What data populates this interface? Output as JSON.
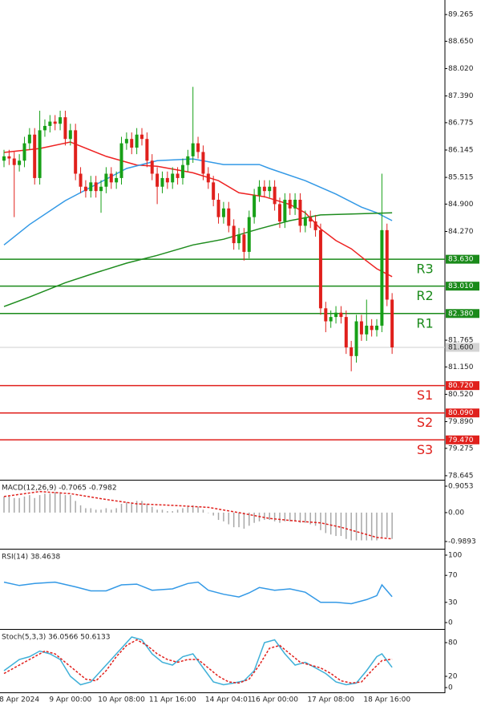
{
  "chart_data": [
    {
      "type": "candlestick",
      "categories": [
        null,
        null,
        null,
        "8 Apr 2024",
        null,
        null,
        null,
        null,
        null,
        null,
        null,
        null,
        null,
        "9 Apr 00:00",
        null,
        null,
        null,
        null,
        null,
        null,
        null,
        null,
        null,
        "10 Apr 08:00",
        null,
        null,
        null,
        null,
        null,
        null,
        null,
        null,
        null,
        "11 Apr 16:00",
        null,
        null,
        null,
        null,
        null,
        null,
        null,
        null,
        null,
        null,
        "14 Apr 04:01",
        null,
        null,
        null,
        null,
        null,
        null,
        null,
        null,
        "16 Apr 00:00",
        null,
        null,
        null,
        null,
        null,
        null,
        null,
        null,
        null,
        null,
        "17 Apr 08:00",
        null,
        null,
        null,
        null,
        null,
        null,
        null,
        null,
        null,
        null,
        "18 Apr 16:00",
        null
      ],
      "open": [
        85.9,
        86.0,
        85.95,
        85.8,
        85.9,
        86.3,
        86.5,
        85.5,
        86.6,
        86.7,
        86.8,
        86.75,
        86.9,
        86.4,
        86.6,
        85.6,
        85.3,
        85.2,
        85.4,
        85.2,
        85.3,
        85.6,
        85.4,
        85.5,
        86.3,
        86.4,
        86.2,
        86.5,
        86.4,
        85.9,
        85.6,
        85.3,
        85.5,
        85.4,
        85.6,
        85.5,
        85.8,
        86.0,
        86.3,
        86.1,
        85.6,
        85.4,
        85.0,
        84.6,
        84.8,
        84.4,
        84.0,
        84.2,
        83.8,
        84.6,
        85.1,
        85.3,
        85.2,
        85.3,
        84.9,
        84.5,
        85.0,
        84.8,
        85.0,
        84.4,
        84.6,
        84.5,
        84.3,
        82.5,
        82.2,
        82.3,
        82.4,
        82.3,
        81.6,
        81.4,
        82.2,
        81.9,
        82.1,
        82.0,
        82.1,
        84.3,
        82.7
      ],
      "high": [
        86.15,
        86.15,
        86.1,
        86.05,
        86.45,
        86.65,
        86.65,
        87.05,
        86.85,
        86.95,
        86.95,
        87.05,
        87.05,
        86.75,
        86.75,
        85.75,
        85.45,
        85.55,
        85.55,
        85.45,
        85.75,
        85.75,
        85.65,
        86.45,
        86.55,
        86.55,
        86.65,
        86.65,
        86.55,
        86.05,
        85.75,
        85.65,
        85.65,
        85.75,
        85.75,
        85.95,
        86.15,
        87.6,
        86.45,
        86.25,
        85.75,
        85.55,
        85.15,
        84.95,
        84.95,
        84.55,
        84.35,
        84.35,
        84.75,
        85.25,
        85.45,
        85.45,
        85.45,
        85.45,
        85.05,
        85.15,
        85.15,
        85.15,
        85.15,
        84.75,
        84.75,
        84.65,
        84.45,
        82.65,
        82.45,
        82.55,
        82.55,
        82.45,
        81.75,
        82.35,
        82.35,
        82.7,
        82.25,
        82.25,
        85.6,
        84.45,
        82.85
      ],
      "low": [
        85.75,
        85.8,
        84.6,
        85.65,
        85.75,
        86.15,
        85.35,
        85.35,
        86.45,
        86.55,
        86.6,
        86.6,
        86.25,
        86.25,
        85.45,
        85.15,
        85.05,
        85.05,
        85.05,
        84.7,
        85.15,
        85.25,
        85.25,
        85.35,
        86.15,
        86.05,
        86.05,
        86.25,
        85.75,
        85.45,
        84.9,
        85.15,
        85.25,
        85.25,
        85.35,
        85.35,
        85.65,
        85.85,
        85.95,
        85.45,
        85.25,
        84.85,
        84.45,
        84.45,
        84.25,
        83.85,
        83.85,
        83.6,
        83.65,
        84.45,
        84.95,
        85.05,
        85.05,
        84.75,
        84.35,
        84.35,
        84.65,
        84.65,
        84.25,
        84.25,
        84.35,
        84.15,
        82.35,
        81.95,
        82.05,
        82.15,
        82.15,
        81.45,
        81.05,
        81.25,
        81.75,
        81.75,
        81.85,
        81.85,
        81.95,
        82.55,
        81.45
      ],
      "close": [
        86.0,
        85.95,
        85.8,
        85.9,
        86.3,
        86.5,
        85.5,
        86.6,
        86.7,
        86.8,
        86.75,
        86.9,
        86.4,
        86.6,
        85.6,
        85.3,
        85.2,
        85.4,
        85.2,
        85.3,
        85.6,
        85.4,
        85.5,
        86.3,
        86.4,
        86.2,
        86.5,
        86.4,
        85.9,
        85.6,
        85.3,
        85.5,
        85.4,
        85.6,
        85.5,
        85.8,
        86.0,
        86.3,
        86.1,
        85.6,
        85.4,
        85.0,
        84.6,
        84.8,
        84.4,
        84.0,
        84.2,
        83.8,
        84.6,
        85.1,
        85.3,
        85.2,
        85.3,
        84.9,
        84.5,
        85.0,
        84.8,
        85.0,
        84.4,
        84.6,
        84.5,
        84.3,
        82.5,
        82.2,
        82.3,
        82.4,
        82.3,
        81.6,
        81.4,
        82.2,
        81.9,
        82.1,
        82.0,
        82.1,
        84.3,
        82.7,
        81.6
      ],
      "up_color": "#17a017",
      "down_color": "#e0201c",
      "lines": [
        {
          "color": "#ee2222",
          "x": [
            0,
            7,
            13,
            20,
            26,
            30,
            37,
            42,
            46,
            51,
            56,
            59,
            62,
            65,
            68,
            71,
            73,
            76
          ],
          "values": [
            86.09,
            86.18,
            86.33,
            86.0,
            85.8,
            85.77,
            85.62,
            85.44,
            85.16,
            85.07,
            84.89,
            84.7,
            84.33,
            84.06,
            83.87,
            83.59,
            83.41,
            83.23
          ]
        },
        {
          "color": "#3399e6",
          "x": [
            0,
            5,
            12,
            18,
            24,
            30,
            37,
            43,
            50,
            52,
            59,
            65,
            70,
            73,
            76
          ],
          "values": [
            83.96,
            84.43,
            84.98,
            85.35,
            85.72,
            85.9,
            85.94,
            85.81,
            85.81,
            85.72,
            85.44,
            85.13,
            84.83,
            84.7,
            84.52
          ]
        },
        {
          "color": "#1e8c1e",
          "x": [
            0,
            5,
            12,
            18,
            24,
            30,
            37,
            43,
            50,
            56,
            62,
            68,
            76
          ],
          "values": [
            82.54,
            82.76,
            83.09,
            83.32,
            83.54,
            83.72,
            83.96,
            84.09,
            84.33,
            84.52,
            84.65,
            84.67,
            84.7
          ]
        }
      ],
      "levels": [
        {
          "name": "R3",
          "value": 83.63,
          "label": "83.630",
          "color": "#1a8a1a"
        },
        {
          "name": "R2",
          "value": 83.01,
          "label": "83.010",
          "color": "#1a8a1a"
        },
        {
          "name": "R1",
          "value": 82.38,
          "label": "82.380",
          "color": "#1a8a1a"
        },
        {
          "name": "S1",
          "value": 80.72,
          "label": "80.720",
          "color": "#e0201c"
        },
        {
          "name": "S2",
          "value": 80.09,
          "label": "80.090",
          "color": "#e0201c"
        },
        {
          "name": "S3",
          "value": 79.47,
          "label": "79.470",
          "color": "#e0201c"
        }
      ],
      "last_price": {
        "value": 81.6,
        "label": "81.600"
      },
      "ylim": [
        78.57,
        89.6
      ],
      "yticks": [
        {
          "value": 89.265,
          "label": "89.265"
        },
        {
          "value": 88.65,
          "label": "88.650"
        },
        {
          "value": 88.02,
          "label": "88.020"
        },
        {
          "value": 87.39,
          "label": "87.390"
        },
        {
          "value": 86.775,
          "label": "86.775"
        },
        {
          "value": 86.145,
          "label": "86.145"
        },
        {
          "value": 85.515,
          "label": "85.515"
        },
        {
          "value": 84.9,
          "label": "84.900"
        },
        {
          "value": 84.27,
          "label": "84.270"
        },
        {
          "value": 81.765,
          "label": "81.765"
        },
        {
          "value": 81.15,
          "label": "81.150"
        },
        {
          "value": 80.52,
          "label": "80.520"
        },
        {
          "value": 79.89,
          "label": "79.890"
        },
        {
          "value": 79.275,
          "label": "79.275"
        },
        {
          "value": 78.645,
          "label": "78.645"
        }
      ]
    },
    {
      "type": "bar",
      "title": "MACD(12,26,9) -0.7065 -0.7982",
      "color": "#a8a8a8",
      "values": [
        0.55,
        0.55,
        0.5,
        0.5,
        0.55,
        0.6,
        0.5,
        0.6,
        0.65,
        0.65,
        0.7,
        0.7,
        0.6,
        0.6,
        0.4,
        0.25,
        0.15,
        0.15,
        0.1,
        0.1,
        0.15,
        0.1,
        0.15,
        0.3,
        0.35,
        0.35,
        0.4,
        0.4,
        0.3,
        0.2,
        0.1,
        0.1,
        0.05,
        0.05,
        0.1,
        0.15,
        0.2,
        0.25,
        0.2,
        0.1,
        0.0,
        -0.1,
        -0.25,
        -0.3,
        -0.4,
        -0.5,
        -0.5,
        -0.55,
        -0.45,
        -0.35,
        -0.3,
        -0.25,
        -0.25,
        -0.3,
        -0.35,
        -0.3,
        -0.3,
        -0.3,
        -0.35,
        -0.35,
        -0.4,
        -0.45,
        -0.6,
        -0.7,
        -0.75,
        -0.8,
        -0.8,
        -0.9,
        -0.95,
        -0.95,
        -0.95,
        -0.95,
        -0.95,
        -0.95,
        -0.85,
        -0.85,
        -0.9
      ],
      "lines": [
        {
          "color": "#e0201c",
          "dash": true,
          "x": [
            0,
            7,
            13,
            20,
            26,
            33,
            40,
            46,
            52,
            58,
            62,
            66,
            70,
            73,
            76
          ],
          "values": [
            0.55,
            0.72,
            0.65,
            0.45,
            0.3,
            0.25,
            0.18,
            0.0,
            -0.2,
            -0.3,
            -0.35,
            -0.5,
            -0.7,
            -0.85,
            -0.9
          ]
        }
      ],
      "ylim": [
        -1.21,
        1.07
      ],
      "yticks": [
        0.9053,
        {
          "value": 0,
          "label": "0.00"
        },
        -0.9893
      ]
    },
    {
      "type": "line",
      "title": "RSI(14) 38.4638",
      "lines": [
        {
          "color": "#3399e6",
          "x": [
            0,
            3,
            6,
            10,
            14,
            17,
            20,
            23,
            26,
            29,
            33,
            36,
            38,
            40,
            43,
            46,
            48,
            50,
            53,
            56,
            59,
            62,
            65,
            68,
            71,
            73,
            74,
            76
          ],
          "values": [
            60,
            55,
            58,
            60,
            53,
            47,
            47,
            56,
            57,
            48,
            50,
            58,
            60,
            48,
            42,
            38,
            44,
            52,
            48,
            50,
            45,
            30,
            30,
            28,
            34,
            40,
            56,
            38.4638
          ]
        }
      ],
      "ylim": [
        -8.3,
        107.1
      ],
      "yticks": [
        100,
        70,
        30,
        0
      ]
    },
    {
      "type": "line",
      "title": "Stoch(5,3,3) 36.0566 50.6133",
      "lines": [
        {
          "color": "#3fb0d8",
          "x": [
            0,
            3,
            5,
            7,
            9,
            11,
            13,
            15,
            17,
            19,
            21,
            23,
            25,
            27,
            29,
            31,
            33,
            35,
            37,
            39,
            41,
            43,
            45,
            47,
            49,
            51,
            53,
            55,
            57,
            59,
            61,
            63,
            65,
            67,
            69,
            71,
            73,
            74,
            76
          ],
          "values": [
            30,
            50,
            55,
            65,
            60,
            50,
            20,
            5,
            10,
            30,
            50,
            70,
            90,
            85,
            60,
            45,
            40,
            55,
            60,
            35,
            10,
            5,
            8,
            12,
            30,
            80,
            85,
            60,
            40,
            45,
            35,
            25,
            10,
            5,
            8,
            30,
            55,
            60,
            36.0566
          ]
        },
        {
          "color": "#e0201c",
          "dash": true,
          "x": [
            0,
            3,
            6,
            8,
            10,
            12,
            14,
            16,
            18,
            20,
            22,
            24,
            26,
            28,
            30,
            32,
            34,
            36,
            38,
            40,
            42,
            44,
            46,
            48,
            50,
            52,
            54,
            56,
            58,
            60,
            62,
            64,
            66,
            68,
            70,
            72,
            74,
            76
          ],
          "values": [
            25,
            40,
            55,
            65,
            60,
            45,
            30,
            15,
            12,
            30,
            55,
            75,
            85,
            75,
            60,
            50,
            45,
            50,
            50,
            35,
            20,
            10,
            8,
            15,
            40,
            70,
            75,
            60,
            45,
            40,
            35,
            25,
            12,
            8,
            10,
            30,
            48,
            50.6133
          ]
        }
      ],
      "ylim": [
        -7.1,
        101.4
      ],
      "yticks": [
        80,
        20,
        0
      ]
    }
  ]
}
